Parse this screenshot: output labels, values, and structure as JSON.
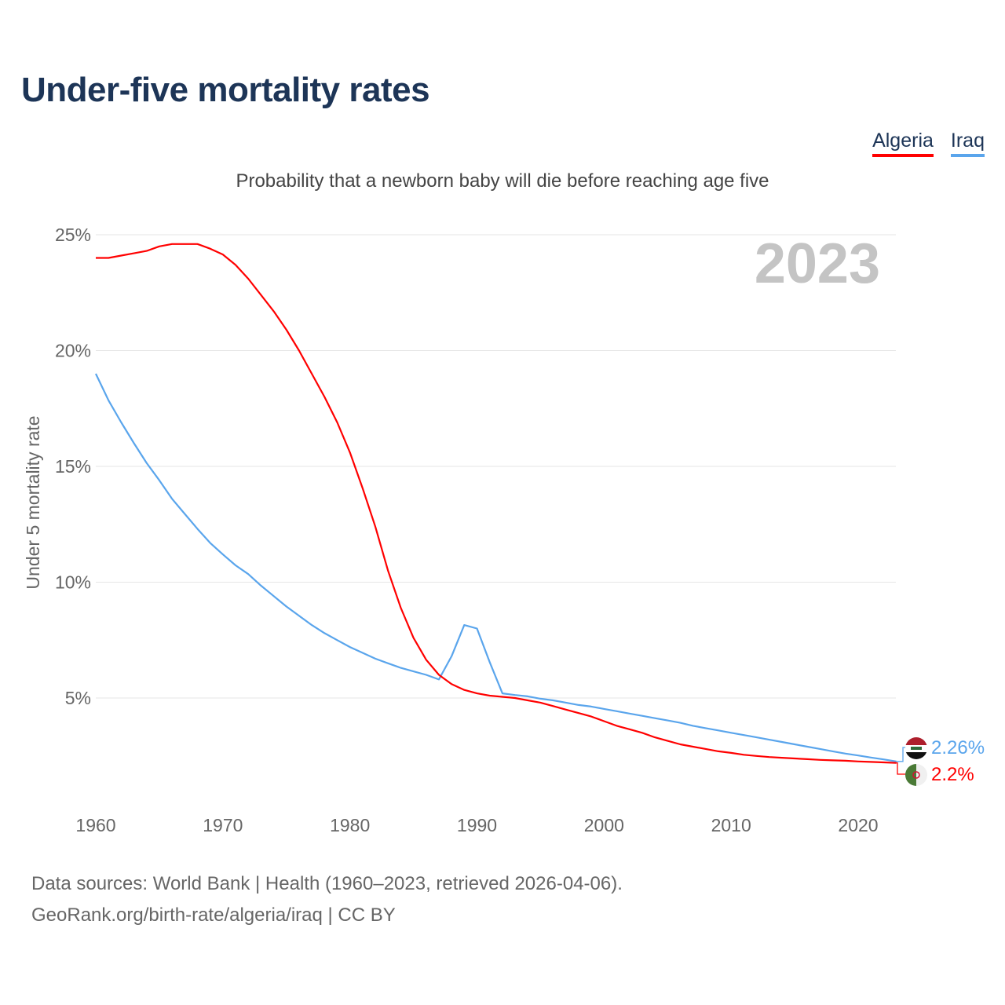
{
  "title": "Under-five mortality rates",
  "subtitle": "Probability that a newborn baby will die before reaching age five",
  "legend": [
    {
      "label": "Algeria",
      "color": "#ff0000"
    },
    {
      "label": "Iraq",
      "color": "#5aa5ec"
    }
  ],
  "year_label": "2023",
  "end_labels": {
    "iraq": "2.26%",
    "algeria": "2.2%"
  },
  "source": {
    "line1": "Data sources: World Bank | Health (1960–2023, retrieved 2026-04-06).",
    "line2": "GeoRank.org/birth-rate/algeria/iraq | CC BY"
  },
  "chart_data": {
    "type": "line",
    "title": "Under-five mortality rates",
    "xlabel": "",
    "ylabel": "Under 5 mortality rate",
    "xlim": [
      1960,
      2023
    ],
    "ylim": [
      0,
      25
    ],
    "yticks": [
      5,
      10,
      15,
      20,
      25
    ],
    "ytick_labels": [
      "5%",
      "10%",
      "15%",
      "20%",
      "25%"
    ],
    "xticks": [
      1960,
      1970,
      1980,
      1990,
      2000,
      2010,
      2020
    ],
    "xtick_labels": [
      "1960",
      "1970",
      "1980",
      "1990",
      "2000",
      "2010",
      "2020"
    ],
    "grid": true,
    "x_start": 1960,
    "series": [
      {
        "name": "Algeria",
        "color": "#ff0000",
        "values": [
          24.0,
          24.0,
          24.1,
          24.2,
          24.3,
          24.5,
          24.6,
          24.6,
          24.6,
          24.4,
          24.15,
          23.7,
          23.1,
          22.4,
          21.7,
          20.9,
          20.0,
          19.0,
          18.0,
          16.9,
          15.6,
          14.05,
          12.4,
          10.5,
          8.9,
          7.6,
          6.65,
          6.0,
          5.6,
          5.35,
          5.2,
          5.1,
          5.05,
          5.0,
          4.9,
          4.8,
          4.65,
          4.5,
          4.35,
          4.2,
          4.0,
          3.8,
          3.65,
          3.5,
          3.3,
          3.15,
          3.0,
          2.9,
          2.8,
          2.7,
          2.63,
          2.55,
          2.5,
          2.45,
          2.42,
          2.39,
          2.36,
          2.33,
          2.31,
          2.29,
          2.26,
          2.24,
          2.22,
          2.2
        ]
      },
      {
        "name": "Iraq",
        "color": "#5aa5ec",
        "values": [
          19.0,
          17.85,
          16.9,
          16.0,
          15.15,
          14.4,
          13.6,
          12.95,
          12.3,
          11.7,
          11.2,
          10.73,
          10.35,
          9.85,
          9.4,
          8.95,
          8.55,
          8.15,
          7.8,
          7.5,
          7.2,
          6.95,
          6.7,
          6.5,
          6.3,
          6.15,
          6.0,
          5.8,
          6.8,
          8.15,
          8.0,
          6.55,
          5.2,
          5.13,
          5.07,
          4.97,
          4.9,
          4.8,
          4.7,
          4.63,
          4.53,
          4.43,
          4.33,
          4.23,
          4.13,
          4.03,
          3.93,
          3.8,
          3.7,
          3.6,
          3.5,
          3.4,
          3.3,
          3.2,
          3.1,
          3.0,
          2.9,
          2.8,
          2.7,
          2.6,
          2.52,
          2.43,
          2.35,
          2.26
        ]
      }
    ]
  }
}
